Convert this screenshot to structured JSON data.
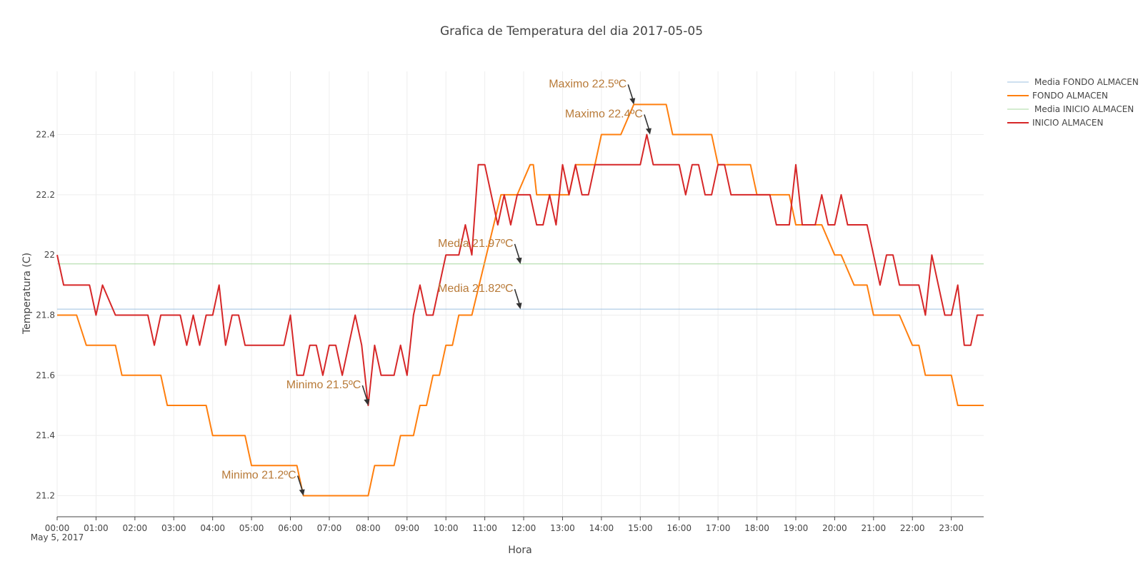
{
  "chart_data": {
    "type": "line",
    "title": "Grafica de Temperatura del dia 2017-05-05",
    "xlabel": "Hora",
    "ylabel": "Temperatura (C)",
    "x_axis_type": "time",
    "x_range": [
      "00:00",
      "23:50"
    ],
    "x_date_label": "May 5, 2017",
    "x_ticks": [
      "00:00",
      "01:00",
      "02:00",
      "03:00",
      "04:00",
      "05:00",
      "06:00",
      "07:00",
      "08:00",
      "09:00",
      "10:00",
      "11:00",
      "12:00",
      "13:00",
      "14:00",
      "15:00",
      "16:00",
      "17:00",
      "18:00",
      "19:00",
      "20:00",
      "21:00",
      "22:00",
      "23:00"
    ],
    "ylim": [
      21.13,
      22.61
    ],
    "y_ticks": [
      21.2,
      21.4,
      21.6,
      21.8,
      22.0,
      22.2,
      22.4
    ],
    "y_tick_labels": [
      "21.2",
      "21.4",
      "21.6",
      "21.8",
      "22",
      "22.2",
      "22.4"
    ],
    "grid": true,
    "legend_position": "top-right",
    "series": [
      {
        "name": "Media FONDO ALMACEN",
        "color": "#9ec0e0",
        "style": "thin",
        "x": [
          "00:00",
          "23:50"
        ],
        "values": [
          21.82,
          21.82
        ]
      },
      {
        "name": "FONDO ALMACEN",
        "color": "#ff7f0e",
        "style": "thick",
        "x": [
          "00:00",
          "00:30",
          "00:45",
          "01:30",
          "01:40",
          "02:40",
          "02:50",
          "03:50",
          "04:00",
          "04:50",
          "05:00",
          "06:10",
          "06:20",
          "08:00",
          "08:10",
          "08:40",
          "08:50",
          "09:10",
          "09:20",
          "09:30",
          "09:40",
          "09:50",
          "10:00",
          "10:10",
          "10:20",
          "10:40",
          "11:25",
          "11:35",
          "11:50",
          "12:10",
          "12:15",
          "12:20",
          "12:30",
          "13:10",
          "13:20",
          "13:50",
          "14:00",
          "14:30",
          "14:50",
          "15:40",
          "15:50",
          "16:50",
          "17:00",
          "17:50",
          "18:00",
          "18:50",
          "19:00",
          "19:40",
          "20:00",
          "20:10",
          "20:30",
          "20:50",
          "21:00",
          "21:40",
          "22:00",
          "22:10",
          "22:20",
          "23:00",
          "23:10",
          "23:50"
        ],
        "values": [
          21.8,
          21.8,
          21.7,
          21.7,
          21.6,
          21.6,
          21.5,
          21.5,
          21.4,
          21.4,
          21.3,
          21.3,
          21.2,
          21.2,
          21.3,
          21.3,
          21.4,
          21.4,
          21.5,
          21.5,
          21.6,
          21.6,
          21.7,
          21.7,
          21.8,
          21.8,
          22.2,
          22.2,
          22.2,
          22.3,
          22.3,
          22.2,
          22.2,
          22.2,
          22.3,
          22.3,
          22.4,
          22.4,
          22.5,
          22.5,
          22.4,
          22.4,
          22.3,
          22.3,
          22.2,
          22.2,
          22.1,
          22.1,
          22.0,
          22.0,
          21.9,
          21.9,
          21.8,
          21.8,
          21.7,
          21.7,
          21.6,
          21.6,
          21.5,
          21.5
        ]
      },
      {
        "name": "Media INICIO ALMACEN",
        "color": "#a8d8a0",
        "style": "thin",
        "x": [
          "00:00",
          "23:50"
        ],
        "values": [
          21.97,
          21.97
        ]
      },
      {
        "name": "INICIO ALMACEN",
        "color": "#d62728",
        "style": "thick",
        "x": [
          "00:00",
          "00:10",
          "00:50",
          "01:00",
          "01:10",
          "01:30",
          "02:20",
          "02:30",
          "02:40",
          "03:10",
          "03:20",
          "03:30",
          "03:40",
          "03:50",
          "04:00",
          "04:10",
          "04:20",
          "04:30",
          "04:40",
          "04:50",
          "05:50",
          "06:00",
          "06:10",
          "06:20",
          "06:30",
          "06:40",
          "06:50",
          "07:00",
          "07:10",
          "07:20",
          "07:30",
          "07:40",
          "07:50",
          "08:00",
          "08:10",
          "08:20",
          "08:40",
          "08:50",
          "09:00",
          "09:10",
          "09:20",
          "09:30",
          "09:40",
          "09:50",
          "10:00",
          "10:10",
          "10:20",
          "10:30",
          "10:40",
          "10:50",
          "11:00",
          "11:10",
          "11:20",
          "11:30",
          "11:40",
          "11:50",
          "12:00",
          "12:10",
          "12:20",
          "12:30",
          "12:40",
          "12:50",
          "13:00",
          "13:10",
          "13:20",
          "13:30",
          "13:40",
          "13:50",
          "14:00",
          "14:10",
          "15:00",
          "15:10",
          "15:20",
          "16:00",
          "16:10",
          "16:20",
          "16:30",
          "16:40",
          "16:50",
          "17:00",
          "17:10",
          "17:20",
          "18:20",
          "18:30",
          "18:40",
          "18:50",
          "19:00",
          "19:10",
          "19:20",
          "19:30",
          "19:40",
          "19:50",
          "20:00",
          "20:10",
          "20:20",
          "20:30",
          "20:40",
          "20:50",
          "21:00",
          "21:10",
          "21:20",
          "21:30",
          "21:40",
          "21:50",
          "22:00",
          "22:10",
          "22:20",
          "22:30",
          "22:40",
          "22:50",
          "23:00",
          "23:10",
          "23:20",
          "23:30",
          "23:40",
          "23:50"
        ],
        "values": [
          22.0,
          21.9,
          21.9,
          21.8,
          21.9,
          21.8,
          21.8,
          21.7,
          21.8,
          21.8,
          21.7,
          21.8,
          21.7,
          21.8,
          21.8,
          21.9,
          21.7,
          21.8,
          21.8,
          21.7,
          21.7,
          21.8,
          21.6,
          21.6,
          21.7,
          21.7,
          21.6,
          21.7,
          21.7,
          21.6,
          21.7,
          21.8,
          21.7,
          21.5,
          21.7,
          21.6,
          21.6,
          21.7,
          21.6,
          21.8,
          21.9,
          21.8,
          21.8,
          21.9,
          22.0,
          22.0,
          22.0,
          22.1,
          22.0,
          22.3,
          22.3,
          22.2,
          22.1,
          22.2,
          22.1,
          22.2,
          22.2,
          22.2,
          22.1,
          22.1,
          22.2,
          22.1,
          22.3,
          22.2,
          22.3,
          22.2,
          22.2,
          22.3,
          22.3,
          22.3,
          22.3,
          22.4,
          22.3,
          22.3,
          22.2,
          22.3,
          22.3,
          22.2,
          22.2,
          22.3,
          22.3,
          22.2,
          22.2,
          22.1,
          22.1,
          22.1,
          22.3,
          22.1,
          22.1,
          22.1,
          22.2,
          22.1,
          22.1,
          22.2,
          22.1,
          22.1,
          22.1,
          22.1,
          22.0,
          21.9,
          22.0,
          22.0,
          21.9,
          21.9,
          21.9,
          21.9,
          21.8,
          22.0,
          21.9,
          21.8,
          21.8,
          21.9,
          21.7,
          21.7,
          21.8,
          21.8
        ]
      }
    ],
    "annotations": [
      {
        "text": "Maximo 22.5ºC",
        "x": "14:50",
        "y": 22.5
      },
      {
        "text": "Maximo 22.4ºC",
        "x": "15:15",
        "y": 22.4
      },
      {
        "text": "Media 21.97ºC",
        "x": "11:55",
        "y": 21.97
      },
      {
        "text": "Media 21.82ºC",
        "x": "11:55",
        "y": 21.82
      },
      {
        "text": "Minimo 21.5ºC",
        "x": "08:00",
        "y": 21.5
      },
      {
        "text": "Minimo 21.2ºC",
        "x": "06:20",
        "y": 21.2
      }
    ],
    "annotation_color": "#b87a38"
  }
}
